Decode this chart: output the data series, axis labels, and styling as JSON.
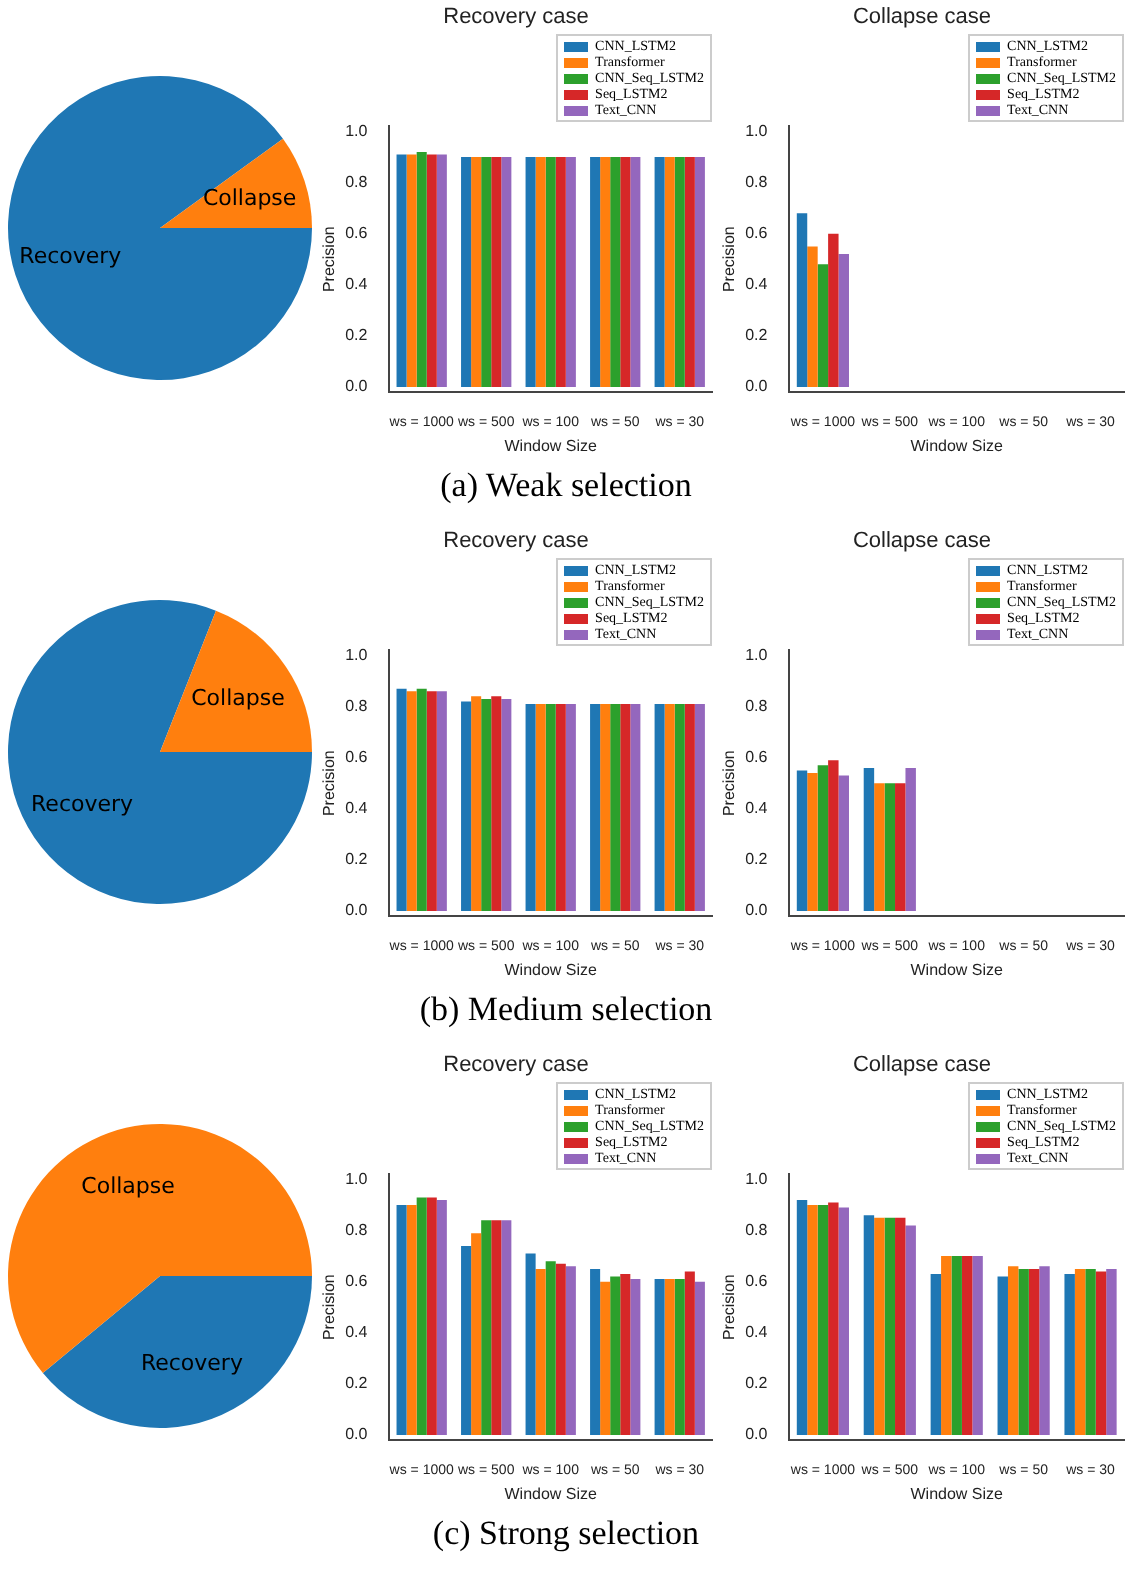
{
  "chart_data": [
    {
      "type": "pie",
      "categories": [
        "Recovery",
        "Collapse"
      ],
      "values": [
        90,
        10
      ],
      "colors": [
        "#1f77b4",
        "#ff7f0e"
      ],
      "annotations": [
        "(a)  Weak selection"
      ]
    },
    {
      "type": "bar",
      "title": "Recovery case",
      "xlabel": "Window Size",
      "ylabel": "Precision",
      "categories": [
        "ws = 1000",
        "ws = 500",
        "ws = 100",
        "ws = 50",
        "ws = 30"
      ],
      "ylim": [
        -0.02,
        1.02
      ],
      "yticks": [
        {
          "value": 0,
          "label": "0.0"
        },
        {
          "value": 0.2,
          "label": "0.2"
        },
        {
          "value": 0.4,
          "label": "0.4"
        },
        {
          "value": 0.6,
          "label": "0.6"
        },
        {
          "value": 0.8,
          "label": "0.8"
        },
        {
          "value": 1,
          "label": "1.0"
        }
      ],
      "legend": "top right",
      "grid": false,
      "series": [
        {
          "name": "CNN_LSTM2",
          "color": "#1f77b4",
          "values": [
            0.91,
            0.9,
            0.9,
            0.9,
            0.9
          ]
        },
        {
          "name": "Transformer",
          "color": "#ff7f0e",
          "values": [
            0.91,
            0.9,
            0.9,
            0.9,
            0.9
          ]
        },
        {
          "name": "CNN_Seq_LSTM2",
          "color": "#2ca02c",
          "values": [
            0.92,
            0.9,
            0.9,
            0.9,
            0.9
          ]
        },
        {
          "name": "Seq_LSTM2",
          "color": "#d62728",
          "values": [
            0.91,
            0.9,
            0.9,
            0.9,
            0.9
          ]
        },
        {
          "name": "Text_CNN",
          "color": "#9467bd",
          "values": [
            0.91,
            0.9,
            0.9,
            0.9,
            0.9
          ]
        }
      ]
    },
    {
      "type": "bar",
      "title": "Collapse case",
      "xlabel": "Window Size",
      "ylabel": "Precision",
      "categories": [
        "ws = 1000",
        "ws = 500",
        "ws = 100",
        "ws = 50",
        "ws = 30"
      ],
      "ylim": [
        -0.02,
        1.02
      ],
      "yticks": [
        {
          "value": 0,
          "label": "0.0"
        },
        {
          "value": 0.2,
          "label": "0.2"
        },
        {
          "value": 0.4,
          "label": "0.4"
        },
        {
          "value": 0.6,
          "label": "0.6"
        },
        {
          "value": 0.8,
          "label": "0.8"
        },
        {
          "value": 1,
          "label": "1.0"
        }
      ],
      "legend": "top right",
      "grid": false,
      "series": [
        {
          "name": "CNN_LSTM2",
          "color": "#1f77b4",
          "values": [
            0.68,
            null,
            null,
            null,
            null
          ]
        },
        {
          "name": "Transformer",
          "color": "#ff7f0e",
          "values": [
            0.55,
            null,
            null,
            null,
            null
          ]
        },
        {
          "name": "CNN_Seq_LSTM2",
          "color": "#2ca02c",
          "values": [
            0.48,
            null,
            null,
            null,
            null
          ]
        },
        {
          "name": "Seq_LSTM2",
          "color": "#d62728",
          "values": [
            0.6,
            null,
            null,
            null,
            null
          ]
        },
        {
          "name": "Text_CNN",
          "color": "#9467bd",
          "values": [
            0.52,
            null,
            null,
            null,
            null
          ]
        }
      ]
    },
    {
      "type": "pie",
      "categories": [
        "Recovery",
        "Collapse"
      ],
      "values": [
        81,
        19
      ],
      "colors": [
        "#1f77b4",
        "#ff7f0e"
      ],
      "annotations": [
        "(b)  Medium selection"
      ]
    },
    {
      "type": "bar",
      "title": "Recovery case",
      "xlabel": "Window Size",
      "ylabel": "Precision",
      "categories": [
        "ws = 1000",
        "ws = 500",
        "ws = 100",
        "ws = 50",
        "ws = 30"
      ],
      "ylim": [
        -0.02,
        1.02
      ],
      "yticks": [
        {
          "value": 0,
          "label": "0.0"
        },
        {
          "value": 0.2,
          "label": "0.2"
        },
        {
          "value": 0.4,
          "label": "0.4"
        },
        {
          "value": 0.6,
          "label": "0.6"
        },
        {
          "value": 0.8,
          "label": "0.8"
        },
        {
          "value": 1,
          "label": "1.0"
        }
      ],
      "legend": "top right",
      "grid": false,
      "series": [
        {
          "name": "CNN_LSTM2",
          "color": "#1f77b4",
          "values": [
            0.87,
            0.82,
            0.81,
            0.81,
            0.81
          ]
        },
        {
          "name": "Transformer",
          "color": "#ff7f0e",
          "values": [
            0.86,
            0.84,
            0.81,
            0.81,
            0.81
          ]
        },
        {
          "name": "CNN_Seq_LSTM2",
          "color": "#2ca02c",
          "values": [
            0.87,
            0.83,
            0.81,
            0.81,
            0.81
          ]
        },
        {
          "name": "Seq_LSTM2",
          "color": "#d62728",
          "values": [
            0.86,
            0.84,
            0.81,
            0.81,
            0.81
          ]
        },
        {
          "name": "Text_CNN",
          "color": "#9467bd",
          "values": [
            0.86,
            0.83,
            0.81,
            0.81,
            0.81
          ]
        }
      ]
    },
    {
      "type": "bar",
      "title": "Collapse case",
      "xlabel": "Window Size",
      "ylabel": "Precision",
      "categories": [
        "ws = 1000",
        "ws = 500",
        "ws = 100",
        "ws = 50",
        "ws = 30"
      ],
      "ylim": [
        -0.02,
        1.02
      ],
      "yticks": [
        {
          "value": 0,
          "label": "0.0"
        },
        {
          "value": 0.2,
          "label": "0.2"
        },
        {
          "value": 0.4,
          "label": "0.4"
        },
        {
          "value": 0.6,
          "label": "0.6"
        },
        {
          "value": 0.8,
          "label": "0.8"
        },
        {
          "value": 1,
          "label": "1.0"
        }
      ],
      "legend": "top right",
      "grid": false,
      "series": [
        {
          "name": "CNN_LSTM2",
          "color": "#1f77b4",
          "values": [
            0.55,
            0.56,
            null,
            null,
            null
          ]
        },
        {
          "name": "Transformer",
          "color": "#ff7f0e",
          "values": [
            0.54,
            0.5,
            null,
            null,
            null
          ]
        },
        {
          "name": "CNN_Seq_LSTM2",
          "color": "#2ca02c",
          "values": [
            0.57,
            0.5,
            null,
            null,
            null
          ]
        },
        {
          "name": "Seq_LSTM2",
          "color": "#d62728",
          "values": [
            0.59,
            0.5,
            null,
            null,
            null
          ]
        },
        {
          "name": "Text_CNN",
          "color": "#9467bd",
          "values": [
            0.53,
            0.56,
            null,
            null,
            null
          ]
        }
      ]
    },
    {
      "type": "pie",
      "categories": [
        "Recovery",
        "Collapse"
      ],
      "values": [
        39,
        61
      ],
      "colors": [
        "#1f77b4",
        "#ff7f0e"
      ],
      "annotations": [
        "(c)  Strong selection"
      ]
    },
    {
      "type": "bar",
      "title": "Recovery case",
      "xlabel": "Window Size",
      "ylabel": "Precision",
      "categories": [
        "ws = 1000",
        "ws = 500",
        "ws = 100",
        "ws = 50",
        "ws = 30"
      ],
      "ylim": [
        -0.02,
        1.02
      ],
      "yticks": [
        {
          "value": 0,
          "label": "0.0"
        },
        {
          "value": 0.2,
          "label": "0.2"
        },
        {
          "value": 0.4,
          "label": "0.4"
        },
        {
          "value": 0.6,
          "label": "0.6"
        },
        {
          "value": 0.8,
          "label": "0.8"
        },
        {
          "value": 1,
          "label": "1.0"
        }
      ],
      "legend": "top right",
      "grid": false,
      "series": [
        {
          "name": "CNN_LSTM2",
          "color": "#1f77b4",
          "values": [
            0.9,
            0.74,
            0.71,
            0.65,
            0.61
          ]
        },
        {
          "name": "Transformer",
          "color": "#ff7f0e",
          "values": [
            0.9,
            0.79,
            0.65,
            0.6,
            0.61
          ]
        },
        {
          "name": "CNN_Seq_LSTM2",
          "color": "#2ca02c",
          "values": [
            0.93,
            0.84,
            0.68,
            0.62,
            0.61
          ]
        },
        {
          "name": "Seq_LSTM2",
          "color": "#d62728",
          "values": [
            0.93,
            0.84,
            0.67,
            0.63,
            0.64
          ]
        },
        {
          "name": "Text_CNN",
          "color": "#9467bd",
          "values": [
            0.92,
            0.84,
            0.66,
            0.61,
            0.6
          ]
        }
      ]
    },
    {
      "type": "bar",
      "title": "Collapse case",
      "xlabel": "Window Size",
      "ylabel": "Precision",
      "categories": [
        "ws = 1000",
        "ws = 500",
        "ws = 100",
        "ws = 50",
        "ws = 30"
      ],
      "ylim": [
        -0.02,
        1.02
      ],
      "yticks": [
        {
          "value": 0,
          "label": "0.0"
        },
        {
          "value": 0.2,
          "label": "0.2"
        },
        {
          "value": 0.4,
          "label": "0.4"
        },
        {
          "value": 0.6,
          "label": "0.6"
        },
        {
          "value": 0.8,
          "label": "0.8"
        },
        {
          "value": 1,
          "label": "1.0"
        }
      ],
      "legend": "top right",
      "grid": false,
      "series": [
        {
          "name": "CNN_LSTM2",
          "color": "#1f77b4",
          "values": [
            0.92,
            0.86,
            0.63,
            0.62,
            0.63
          ]
        },
        {
          "name": "Transformer",
          "color": "#ff7f0e",
          "values": [
            0.9,
            0.85,
            0.7,
            0.66,
            0.65
          ]
        },
        {
          "name": "CNN_Seq_LSTM2",
          "color": "#2ca02c",
          "values": [
            0.9,
            0.85,
            0.7,
            0.65,
            0.65
          ]
        },
        {
          "name": "Seq_LSTM2",
          "color": "#d62728",
          "values": [
            0.91,
            0.85,
            0.7,
            0.65,
            0.64
          ]
        },
        {
          "name": "Text_CNN",
          "color": "#9467bd",
          "values": [
            0.89,
            0.82,
            0.7,
            0.66,
            0.65
          ]
        }
      ]
    }
  ]
}
